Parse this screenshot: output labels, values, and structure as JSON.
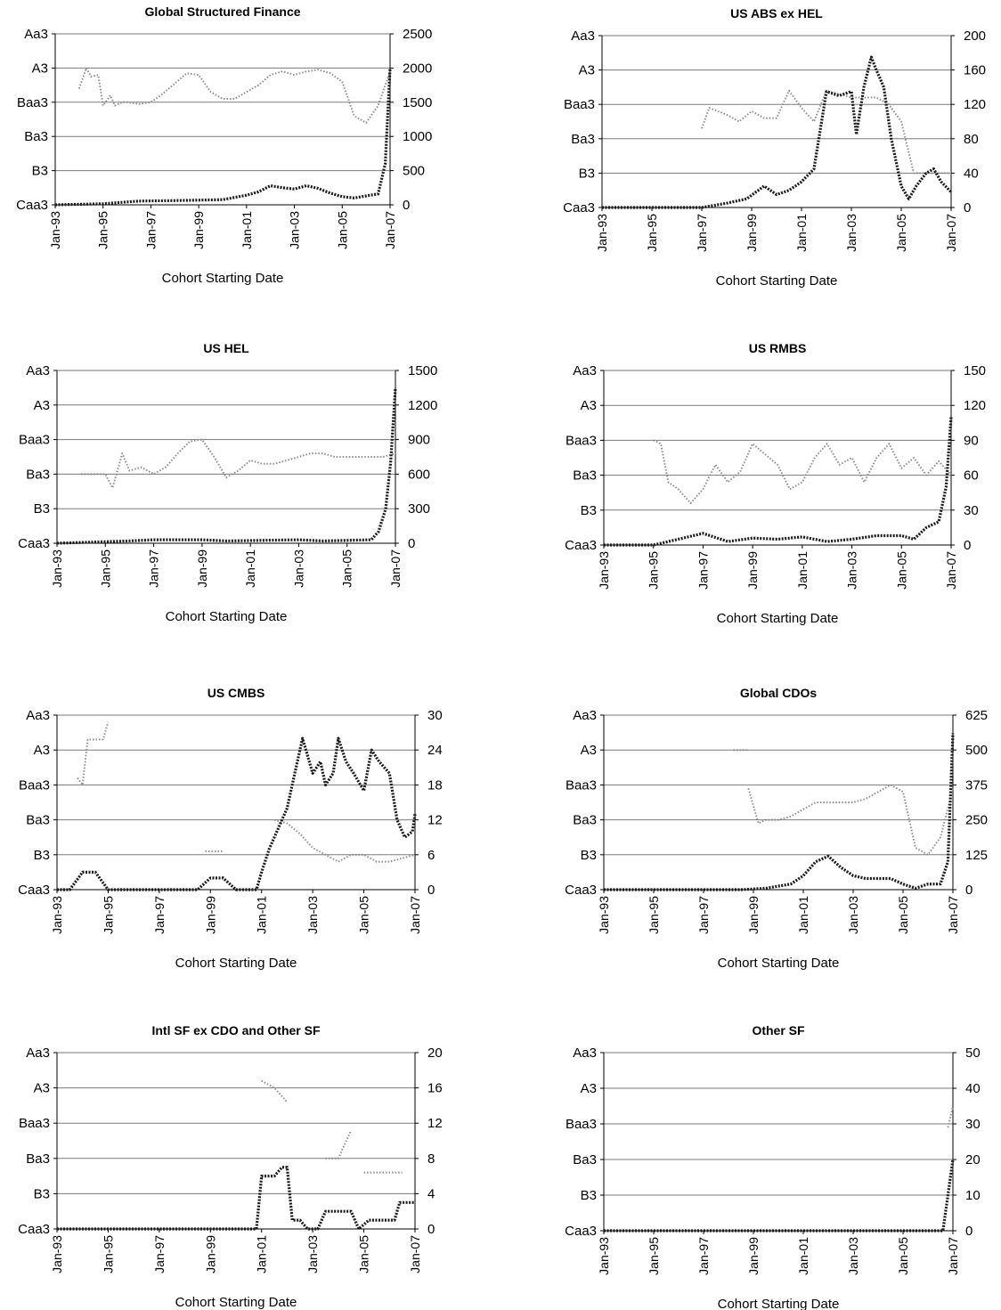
{
  "chart_data": [
    {
      "type": "line",
      "title": "Global Structured Finance",
      "xlabel": "Cohort Starting Date",
      "x_ticks": [
        "Jan-93",
        "Jan-95",
        "Jan-97",
        "Jan-99",
        "Jan-01",
        "Jan-03",
        "Jan-05",
        "Jan-07"
      ],
      "xlim": [
        1993,
        2007
      ],
      "left_axis_ticks": [
        "Caa3",
        "B3",
        "Ba3",
        "Baa3",
        "A3",
        "Aa3"
      ],
      "right_axis_ticks": [
        "0",
        "500",
        "1000",
        "1500",
        "2000",
        "2500"
      ],
      "right_ylim": [
        0,
        2500
      ],
      "grid": "horizontal",
      "series": [
        {
          "style": "light-dotted",
          "axis": "left-rating-index",
          "x": [
            1994.0,
            1994.3,
            1994.5,
            1994.8,
            1995.0,
            1995.3,
            1995.5,
            1995.8,
            1996.0,
            1996.5,
            1997.0,
            1997.5,
            1998.0,
            1998.5,
            1999.0,
            1999.5,
            2000.0,
            2000.5,
            2001.0,
            2001.5,
            2002.0,
            2002.5,
            2003.0,
            2003.5,
            2004.0,
            2004.5,
            2005.0,
            2005.5,
            2006.0,
            2006.5,
            2007.0
          ],
          "y": [
            3.4,
            4.0,
            3.75,
            3.8,
            2.9,
            3.2,
            2.9,
            3.0,
            3.0,
            2.95,
            3.0,
            3.25,
            3.55,
            3.85,
            3.8,
            3.3,
            3.1,
            3.1,
            3.3,
            3.5,
            3.8,
            3.9,
            3.8,
            3.9,
            3.95,
            3.85,
            3.6,
            2.6,
            2.4,
            2.9,
            3.9
          ]
        },
        {
          "style": "bold-dotted",
          "axis": "right",
          "x": [
            1993.0,
            1995.0,
            1996.5,
            1998.5,
            2000.0,
            2001.0,
            2001.5,
            2002.0,
            2002.5,
            2003.0,
            2003.5,
            2004.0,
            2004.5,
            2005.0,
            2005.5,
            2006.0,
            2006.5,
            2006.8,
            2007.0
          ],
          "y": [
            0,
            15,
            55,
            65,
            75,
            140,
            190,
            280,
            250,
            230,
            280,
            240,
            170,
            120,
            100,
            130,
            160,
            600,
            2000
          ]
        }
      ]
    },
    {
      "type": "line",
      "title": "US ABS ex HEL",
      "xlabel": "Cohort Starting Date",
      "x_ticks": [
        "Jan-93",
        "Jan-95",
        "Jan-97",
        "Jan-99",
        "Jan-01",
        "Jan-03",
        "Jan-05",
        "Jan-07"
      ],
      "xlim": [
        1993,
        2007
      ],
      "left_axis_ticks": [
        "Caa3",
        "B3",
        "Ba3",
        "Baa3",
        "A3",
        "Aa3"
      ],
      "right_axis_ticks": [
        "0",
        "40",
        "80",
        "120",
        "160",
        "200"
      ],
      "right_ylim": [
        0,
        200
      ],
      "grid": "horizontal",
      "series": [
        {
          "style": "light-dotted",
          "axis": "left-rating-index",
          "x": [
            1997.0,
            1997.3,
            1998.0,
            1998.5,
            1999.0,
            1999.5,
            2000.0,
            2000.5,
            2001.0,
            2001.5,
            2002.0,
            2002.5,
            2003.0,
            2003.5,
            2004.0,
            2004.5,
            2005.0,
            2005.5,
            2006.0,
            2006.5,
            2007.0
          ],
          "y": [
            2.3,
            2.9,
            2.7,
            2.5,
            2.8,
            2.6,
            2.6,
            3.4,
            2.9,
            2.5,
            3.4,
            3.3,
            3.2,
            3.2,
            3.2,
            3.0,
            2.5,
            1.0,
            1.0,
            1.0,
            1.0
          ]
        },
        {
          "style": "bold-dotted",
          "axis": "right",
          "x": [
            1993.0,
            1997.0,
            1998.0,
            1998.8,
            1999.5,
            2000.0,
            2000.5,
            2001.0,
            2001.5,
            2002.0,
            2002.5,
            2003.0,
            2003.2,
            2003.5,
            2003.8,
            2004.0,
            2004.3,
            2004.6,
            2005.0,
            2005.3,
            2005.6,
            2006.0,
            2006.3,
            2006.6,
            2007.0
          ],
          "y": [
            0,
            0,
            5,
            10,
            25,
            15,
            20,
            30,
            45,
            135,
            130,
            135,
            85,
            140,
            175,
            160,
            140,
            80,
            25,
            10,
            25,
            40,
            45,
            30,
            18
          ]
        }
      ]
    },
    {
      "type": "line",
      "title": "US HEL",
      "xlabel": "Cohort Starting Date",
      "x_ticks": [
        "Jan-93",
        "Jan-95",
        "Jan-97",
        "Jan-99",
        "Jan-01",
        "Jan-03",
        "Jan-05",
        "Jan-07"
      ],
      "xlim": [
        1993,
        2007
      ],
      "left_axis_ticks": [
        "Caa3",
        "B3",
        "Ba3",
        "Baa3",
        "A3",
        "Aa3"
      ],
      "right_axis_ticks": [
        "0",
        "300",
        "600",
        "900",
        "1200",
        "1500"
      ],
      "right_ylim": [
        0,
        1500
      ],
      "grid": "horizontal",
      "series": [
        {
          "style": "light-dotted",
          "axis": "left-rating-index",
          "x": [
            1994.0,
            1994.5,
            1995.0,
            1995.3,
            1995.7,
            1996.0,
            1996.5,
            1997.0,
            1997.5,
            1998.0,
            1998.5,
            1999.0,
            1999.5,
            2000.0,
            2000.5,
            2001.0,
            2001.5,
            2002.0,
            2002.5,
            2003.0,
            2003.5,
            2004.0,
            2004.5,
            2005.0,
            2005.5,
            2006.0,
            2006.5,
            2007.0
          ],
          "y": [
            2.0,
            2.0,
            2.0,
            1.6,
            2.6,
            2.1,
            2.2,
            2.0,
            2.2,
            2.6,
            2.95,
            3.0,
            2.5,
            1.9,
            2.1,
            2.4,
            2.3,
            2.3,
            2.4,
            2.5,
            2.6,
            2.6,
            2.5,
            2.5,
            2.5,
            2.5,
            2.5,
            2.6
          ]
        },
        {
          "style": "bold-dotted",
          "axis": "right",
          "x": [
            1993.0,
            1996.0,
            1997.0,
            1999.0,
            2000.0,
            2003.0,
            2004.0,
            2006.0,
            2006.3,
            2006.6,
            2006.8,
            2007.0
          ],
          "y": [
            0,
            20,
            30,
            30,
            20,
            30,
            20,
            30,
            100,
            300,
            700,
            1350
          ]
        }
      ]
    },
    {
      "type": "line",
      "title": "US RMBS",
      "xlabel": "Cohort Starting Date",
      "x_ticks": [
        "Jan-93",
        "Jan-95",
        "Jan-97",
        "Jan-99",
        "Jan-01",
        "Jan-03",
        "Jan-05",
        "Jan-07"
      ],
      "xlim": [
        1993,
        2007
      ],
      "left_axis_ticks": [
        "Caa3",
        "B3",
        "Ba3",
        "Baa3",
        "A3",
        "Aa3"
      ],
      "right_axis_ticks": [
        "0",
        "30",
        "60",
        "90",
        "120",
        "150"
      ],
      "right_ylim": [
        0,
        150
      ],
      "grid": "horizontal",
      "series": [
        {
          "style": "light-dotted",
          "axis": "left-rating-index",
          "x": [
            1995.0,
            1995.3,
            1995.6,
            1996.0,
            1996.5,
            1997.0,
            1997.5,
            1998.0,
            1998.5,
            1999.0,
            1999.5,
            2000.0,
            2000.5,
            2001.0,
            2001.5,
            2002.0,
            2002.5,
            2003.0,
            2003.5,
            2004.0,
            2004.5,
            2005.0,
            2005.5,
            2006.0,
            2006.5,
            2007.0
          ],
          "y": [
            3.0,
            2.9,
            1.8,
            1.6,
            1.2,
            1.6,
            2.3,
            1.8,
            2.1,
            2.9,
            2.6,
            2.3,
            1.6,
            1.8,
            2.5,
            2.9,
            2.3,
            2.5,
            1.8,
            2.5,
            2.9,
            2.2,
            2.5,
            2.0,
            2.4,
            2.0
          ]
        },
        {
          "style": "bold-dotted",
          "axis": "right",
          "x": [
            1993.0,
            1995.0,
            1996.0,
            1997.0,
            1998.0,
            1999.0,
            2000.0,
            2001.0,
            2002.0,
            2003.0,
            2004.0,
            2005.0,
            2005.5,
            2006.0,
            2006.5,
            2006.8,
            2007.0
          ],
          "y": [
            0,
            0,
            5,
            10,
            3,
            6,
            5,
            7,
            3,
            5,
            8,
            8,
            5,
            15,
            20,
            50,
            110
          ]
        }
      ]
    },
    {
      "type": "line",
      "title": "US CMBS",
      "xlabel": "Cohort Starting Date",
      "x_ticks": [
        "Jan-93",
        "Jan-95",
        "Jan-97",
        "Jan-99",
        "Jan-01",
        "Jan-03",
        "Jan-05",
        "Jan-07"
      ],
      "xlim": [
        1993,
        2007
      ],
      "left_axis_ticks": [
        "Caa3",
        "B3",
        "Ba3",
        "Baa3",
        "A3",
        "Aa3"
      ],
      "right_axis_ticks": [
        "0",
        "6",
        "12",
        "18",
        "24",
        "30"
      ],
      "right_ylim": [
        0,
        30
      ],
      "grid": "horizontal",
      "series": [
        {
          "style": "light-dotted",
          "axis": "left-rating-index",
          "x": [
            1993.8,
            1994.0,
            1994.2,
            1994.5,
            1994.8,
            1995.0
          ],
          "y": [
            3.2,
            3.0,
            4.3,
            4.3,
            4.3,
            4.8
          ]
        },
        {
          "style": "light-dotted",
          "axis": "left-rating-index",
          "x": [
            1998.8,
            1999.5
          ],
          "y": [
            1.1,
            1.1
          ]
        },
        {
          "style": "light-dotted",
          "axis": "left-rating-index",
          "x": [
            2001.5,
            2002.0,
            2002.5,
            2003.0,
            2003.5,
            2004.0,
            2004.5,
            2005.0,
            2005.5,
            2006.0,
            2006.5,
            2007.0
          ],
          "y": [
            2.0,
            1.9,
            1.6,
            1.2,
            1.0,
            0.8,
            1.0,
            1.0,
            0.8,
            0.8,
            0.9,
            1.0
          ]
        },
        {
          "style": "bold-dotted",
          "axis": "right",
          "x": [
            1993.0,
            1993.5,
            1994.0,
            1994.5,
            1995.0,
            1995.3,
            1998.5,
            1999.0,
            1999.5,
            2000.0,
            2000.5,
            2000.8,
            2001.0,
            2001.3,
            2001.6,
            2002.0,
            2002.3,
            2002.6,
            2003.0,
            2003.3,
            2003.5,
            2003.8,
            2004.0,
            2004.3,
            2004.6,
            2005.0,
            2005.3,
            2005.6,
            2006.0,
            2006.3,
            2006.6,
            2006.9,
            2007.0
          ],
          "y": [
            0,
            0,
            3,
            3,
            0,
            0,
            0,
            2,
            2,
            0,
            0,
            0,
            3,
            7,
            10,
            14,
            20,
            26,
            20,
            22,
            18,
            20,
            26,
            22,
            20,
            17,
            24,
            22,
            20,
            12,
            9,
            10,
            13
          ]
        }
      ]
    },
    {
      "type": "line",
      "title": "Global CDOs",
      "xlabel": "Cohort Starting Date",
      "x_ticks": [
        "Jan-93",
        "Jan-95",
        "Jan-97",
        "Jan-99",
        "Jan-01",
        "Jan-03",
        "Jan-05",
        "Jan-07"
      ],
      "xlim": [
        1993,
        2007
      ],
      "left_axis_ticks": [
        "Caa3",
        "B3",
        "Ba3",
        "Baa3",
        "A3",
        "Aa3"
      ],
      "right_axis_ticks": [
        "0",
        "125",
        "250",
        "375",
        "500",
        "625"
      ],
      "right_ylim": [
        0,
        625
      ],
      "grid": "horizontal",
      "series": [
        {
          "style": "light-dotted",
          "axis": "left-rating-index",
          "x": [
            1998.2,
            1998.5,
            1998.8
          ],
          "y": [
            4.0,
            4.0,
            4.0
          ]
        },
        {
          "style": "light-dotted",
          "axis": "left-rating-index",
          "x": [
            1998.8,
            1999.2,
            1999.5,
            2000.0,
            2000.5,
            2001.0,
            2001.5,
            2002.0,
            2002.5,
            2003.0,
            2003.5,
            2004.0,
            2004.5,
            2005.0,
            2005.5,
            2006.0,
            2006.5,
            2007.0
          ],
          "y": [
            2.9,
            1.9,
            2.0,
            2.0,
            2.1,
            2.3,
            2.5,
            2.5,
            2.5,
            2.5,
            2.6,
            2.8,
            3.0,
            2.8,
            1.2,
            1.0,
            1.5,
            2.9
          ]
        },
        {
          "style": "bold-dotted",
          "axis": "right",
          "x": [
            1993.0,
            1998.5,
            1999.5,
            2000.5,
            2001.0,
            2001.5,
            2002.0,
            2002.5,
            2003.0,
            2003.5,
            2004.0,
            2004.5,
            2005.0,
            2005.5,
            2006.0,
            2006.5,
            2006.8,
            2007.0
          ],
          "y": [
            0,
            0,
            5,
            20,
            50,
            100,
            120,
            80,
            50,
            40,
            40,
            40,
            20,
            5,
            20,
            20,
            100,
            560
          ]
        }
      ]
    },
    {
      "type": "line",
      "title": "Intl SF ex CDO and Other SF",
      "xlabel": "Cohort Starting Date",
      "x_ticks": [
        "Jan-93",
        "Jan-95",
        "Jan-97",
        "Jan-99",
        "Jan-01",
        "Jan-03",
        "Jan-05",
        "Jan-07"
      ],
      "xlim": [
        1993,
        2007
      ],
      "left_axis_ticks": [
        "Caa3",
        "B3",
        "Ba3",
        "Baa3",
        "A3",
        "Aa3"
      ],
      "right_axis_ticks": [
        "0",
        "4",
        "8",
        "12",
        "16",
        "20"
      ],
      "right_ylim": [
        0,
        20
      ],
      "grid": "horizontal",
      "series": [
        {
          "style": "light-dotted",
          "axis": "left-rating-index",
          "x": [
            2001.0,
            2001.5,
            2002.0
          ],
          "y": [
            4.2,
            4.0,
            3.6
          ]
        },
        {
          "style": "light-dotted",
          "axis": "left-rating-index",
          "x": [
            2003.5,
            2004.0,
            2004.5
          ],
          "y": [
            2.0,
            2.0,
            2.8
          ]
        },
        {
          "style": "light-dotted",
          "axis": "left-rating-index",
          "x": [
            2005.0,
            2005.5,
            2006.0,
            2006.5
          ],
          "y": [
            1.6,
            1.6,
            1.6,
            1.6
          ]
        },
        {
          "style": "bold-dotted",
          "axis": "right",
          "x": [
            1993.0,
            2000.8,
            2001.0,
            2001.5,
            2001.8,
            2002.0,
            2002.2,
            2002.5,
            2002.8,
            2003.2,
            2003.5,
            2004.0,
            2004.5,
            2004.8,
            2005.2,
            2005.8,
            2006.2,
            2006.4,
            2006.8,
            2007.0
          ],
          "y": [
            0,
            0,
            6,
            6,
            7,
            7,
            1,
            1,
            0,
            0,
            2,
            2,
            2,
            0,
            1,
            1,
            1,
            3,
            3,
            3
          ]
        }
      ]
    },
    {
      "type": "line",
      "title": "Other SF",
      "xlabel": "Cohort Starting Date",
      "x_ticks": [
        "Jan-93",
        "Jan-95",
        "Jan-97",
        "Jan-99",
        "Jan-01",
        "Jan-03",
        "Jan-05",
        "Jan-07"
      ],
      "xlim": [
        1993,
        2007
      ],
      "left_axis_ticks": [
        "Caa3",
        "B3",
        "Ba3",
        "Baa3",
        "A3",
        "Aa3"
      ],
      "right_axis_ticks": [
        "0",
        "10",
        "20",
        "30",
        "40",
        "50"
      ],
      "right_ylim": [
        0,
        50
      ],
      "grid": "horizontal",
      "series": [
        {
          "style": "light-dotted",
          "axis": "left-rating-index",
          "x": [
            2006.8,
            2007.0
          ],
          "y": [
            2.9,
            3.5
          ]
        },
        {
          "style": "bold-dotted",
          "axis": "right",
          "x": [
            1993.0,
            2006.6,
            2006.8,
            2007.0
          ],
          "y": [
            0,
            0,
            10,
            20
          ]
        }
      ]
    }
  ]
}
